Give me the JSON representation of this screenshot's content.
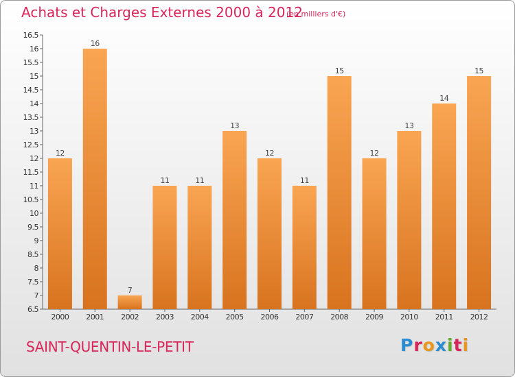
{
  "page": {
    "title": "Achats et Charges Externes 2000 à 2012",
    "subtitle": "(en milliers d'€)",
    "location": "SAINT-QUENTIN-LE-PETIT",
    "brand": "Proxiti"
  },
  "colors": {
    "title": "#d8265a",
    "bar_top": "#f9a552",
    "bar_bottom": "#d8731f",
    "brand_letters": [
      "#2a8bd0",
      "#d8265a",
      "#e8961e",
      "#2a8bd0",
      "#62ad2c",
      "#d8265a",
      "#e8961e"
    ]
  },
  "chart_data": {
    "type": "bar",
    "title": "Achats et Charges Externes 2000 à 2012",
    "subtitle": "(en milliers d'€)",
    "xlabel": "",
    "ylabel": "",
    "categories": [
      "2000",
      "2001",
      "2002",
      "2003",
      "2004",
      "2005",
      "2006",
      "2007",
      "2008",
      "2009",
      "2010",
      "2011",
      "2012"
    ],
    "values": [
      12,
      16,
      7,
      11,
      11,
      13,
      12,
      11,
      15,
      12,
      13,
      14,
      15
    ],
    "ylim": [
      6.5,
      16.5
    ],
    "yticks": [
      "6.5",
      "7",
      "7.5",
      "8",
      "8.5",
      "9",
      "9.5",
      "10",
      "10.5",
      "11",
      "11.5",
      "12",
      "12.5",
      "13",
      "13.5",
      "14",
      "14.5",
      "15",
      "15.5",
      "16",
      "16.5"
    ],
    "grid": false,
    "legend": "none"
  }
}
